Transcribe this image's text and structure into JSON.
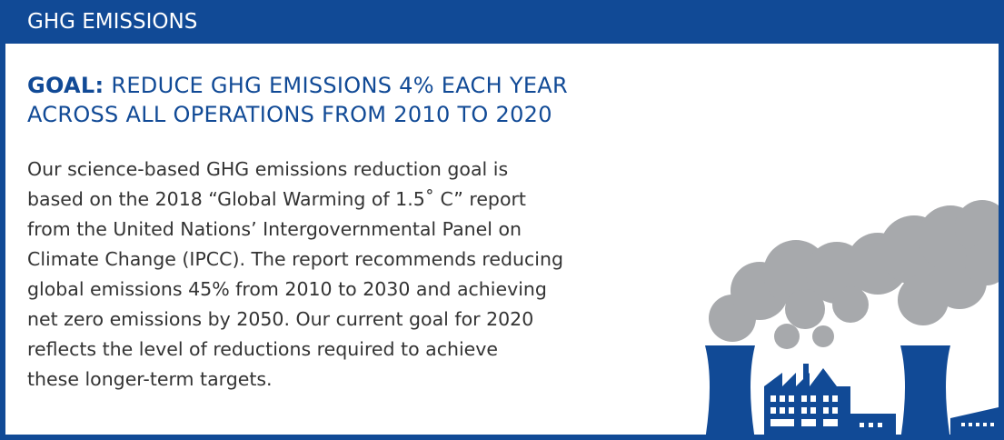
{
  "header": {
    "title": "GHG EMISSIONS"
  },
  "goal": {
    "label": "GOAL:",
    "lines": [
      "REDUCE GHG EMISSIONS 4% EACH YEAR",
      "ACROSS ALL OPERATIONS FROM 2010 TO 2020"
    ]
  },
  "body": {
    "lines": [
      "Our science-based GHG emissions reduction goal is",
      "based on the 2018 “Global Warming of 1.5˚ C” report",
      "from the United Nations’ Intergovernmental Panel on",
      "Climate Change (IPCC). The report recommends reducing",
      "global emissions 45% from 2010 to 2030 and achieving",
      "net zero emissions by 2050. Our current goal for 2020",
      "reflects the level of reductions required to achieve",
      "these longer-term targets."
    ]
  }
}
